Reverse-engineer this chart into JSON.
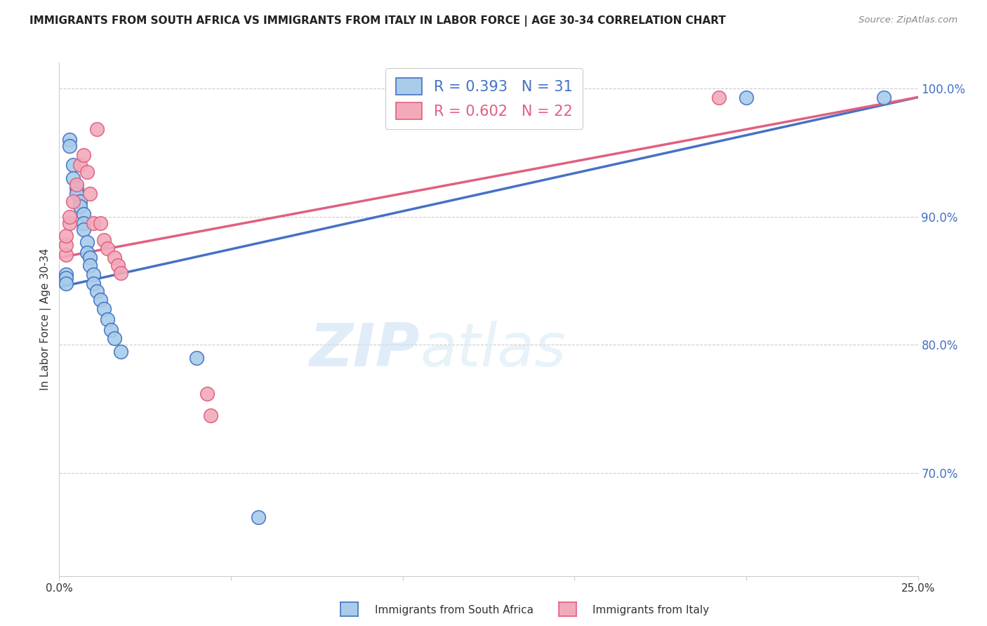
{
  "title": "IMMIGRANTS FROM SOUTH AFRICA VS IMMIGRANTS FROM ITALY IN LABOR FORCE | AGE 30-34 CORRELATION CHART",
  "source": "Source: ZipAtlas.com",
  "ylabel": "In Labor Force | Age 30-34",
  "xlim": [
    0.0,
    0.25
  ],
  "ylim": [
    0.62,
    1.02
  ],
  "yticks": [
    0.7,
    0.8,
    0.9,
    1.0
  ],
  "ytick_labels": [
    "70.0%",
    "80.0%",
    "90.0%",
    "100.0%"
  ],
  "xticks": [
    0.0,
    0.05,
    0.1,
    0.15,
    0.2,
    0.25
  ],
  "xtick_labels": [
    "0.0%",
    "",
    "",
    "",
    "",
    "25.0%"
  ],
  "blue_color": "#A8CCEA",
  "pink_color": "#F2AABB",
  "blue_line_color": "#4472C4",
  "pink_line_color": "#E06080",
  "R_blue": 0.393,
  "N_blue": 31,
  "R_pink": 0.602,
  "N_pink": 22,
  "blue_x": [
    0.002,
    0.002,
    0.002,
    0.003,
    0.003,
    0.004,
    0.004,
    0.005,
    0.005,
    0.006,
    0.006,
    0.007,
    0.007,
    0.007,
    0.008,
    0.008,
    0.009,
    0.009,
    0.01,
    0.01,
    0.011,
    0.012,
    0.013,
    0.014,
    0.015,
    0.016,
    0.018,
    0.04,
    0.058,
    0.2,
    0.24
  ],
  "blue_y": [
    0.855,
    0.852,
    0.848,
    0.96,
    0.955,
    0.94,
    0.93,
    0.922,
    0.918,
    0.912,
    0.908,
    0.902,
    0.895,
    0.89,
    0.88,
    0.872,
    0.868,
    0.862,
    0.855,
    0.848,
    0.842,
    0.835,
    0.828,
    0.82,
    0.812,
    0.805,
    0.795,
    0.79,
    0.666,
    0.993,
    0.993
  ],
  "pink_x": [
    0.002,
    0.002,
    0.002,
    0.003,
    0.003,
    0.004,
    0.005,
    0.006,
    0.007,
    0.008,
    0.009,
    0.01,
    0.011,
    0.012,
    0.013,
    0.014,
    0.016,
    0.017,
    0.018,
    0.043,
    0.044,
    0.192
  ],
  "pink_y": [
    0.87,
    0.878,
    0.885,
    0.895,
    0.9,
    0.912,
    0.925,
    0.94,
    0.948,
    0.935,
    0.918,
    0.895,
    0.968,
    0.895,
    0.882,
    0.875,
    0.868,
    0.862,
    0.856,
    0.762,
    0.745,
    0.993
  ],
  "watermark_zip": "ZIP",
  "watermark_atlas": "atlas",
  "background_color": "#ffffff",
  "grid_color": "#cccccc",
  "legend_label_blue": "R = 0.393   N = 31",
  "legend_label_pink": "R = 0.602   N = 22",
  "bottom_label_blue": "Immigrants from South Africa",
  "bottom_label_pink": "Immigrants from Italy"
}
